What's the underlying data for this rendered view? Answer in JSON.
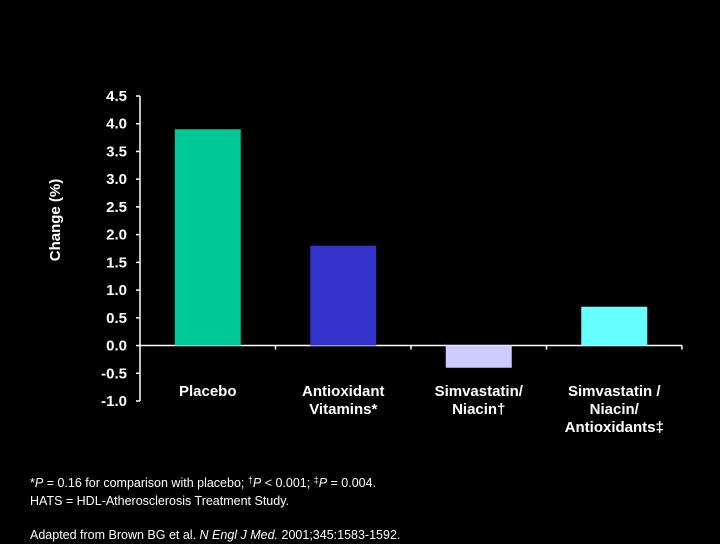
{
  "chart_data": {
    "type": "bar",
    "categories": [
      [
        "Placebo"
      ],
      [
        "Antioxidant",
        "Vitamins*"
      ],
      [
        "Simvastatin/",
        "Niacin†"
      ],
      [
        "Simvastatin /",
        "Niacin/",
        "Antioxidants‡"
      ]
    ],
    "values": [
      3.9,
      1.8,
      -0.4,
      0.7
    ],
    "colors": [
      "#00C896",
      "#3333CC",
      "#CCCCFF",
      "#66FFFF"
    ],
    "ylabel": "Change (%)",
    "ylim": [
      -1.0,
      4.5
    ],
    "yticks": [
      "4.5",
      "4.0",
      "3.5",
      "3.0",
      "2.5",
      "2.0",
      "1.5",
      "1.0",
      "0.5",
      "0.0",
      "-0.5",
      "-1.0"
    ],
    "grid": false
  },
  "footnotes": {
    "line1": {
      "a": "*",
      "b": "P",
      "c": " = 0.16 for comparison with placebo; ",
      "d": "†",
      "e": "P",
      "f": " < 0.001; ",
      "g": "‡",
      "h": "P",
      "i": " = 0.004."
    },
    "line2": "HATS = HDL-Atherosclerosis Treatment Study.",
    "line3": {
      "a": "Adapted from Brown BG et al. ",
      "b": "N Engl J Med.",
      "c": " 2001;345:1583-1592."
    }
  }
}
